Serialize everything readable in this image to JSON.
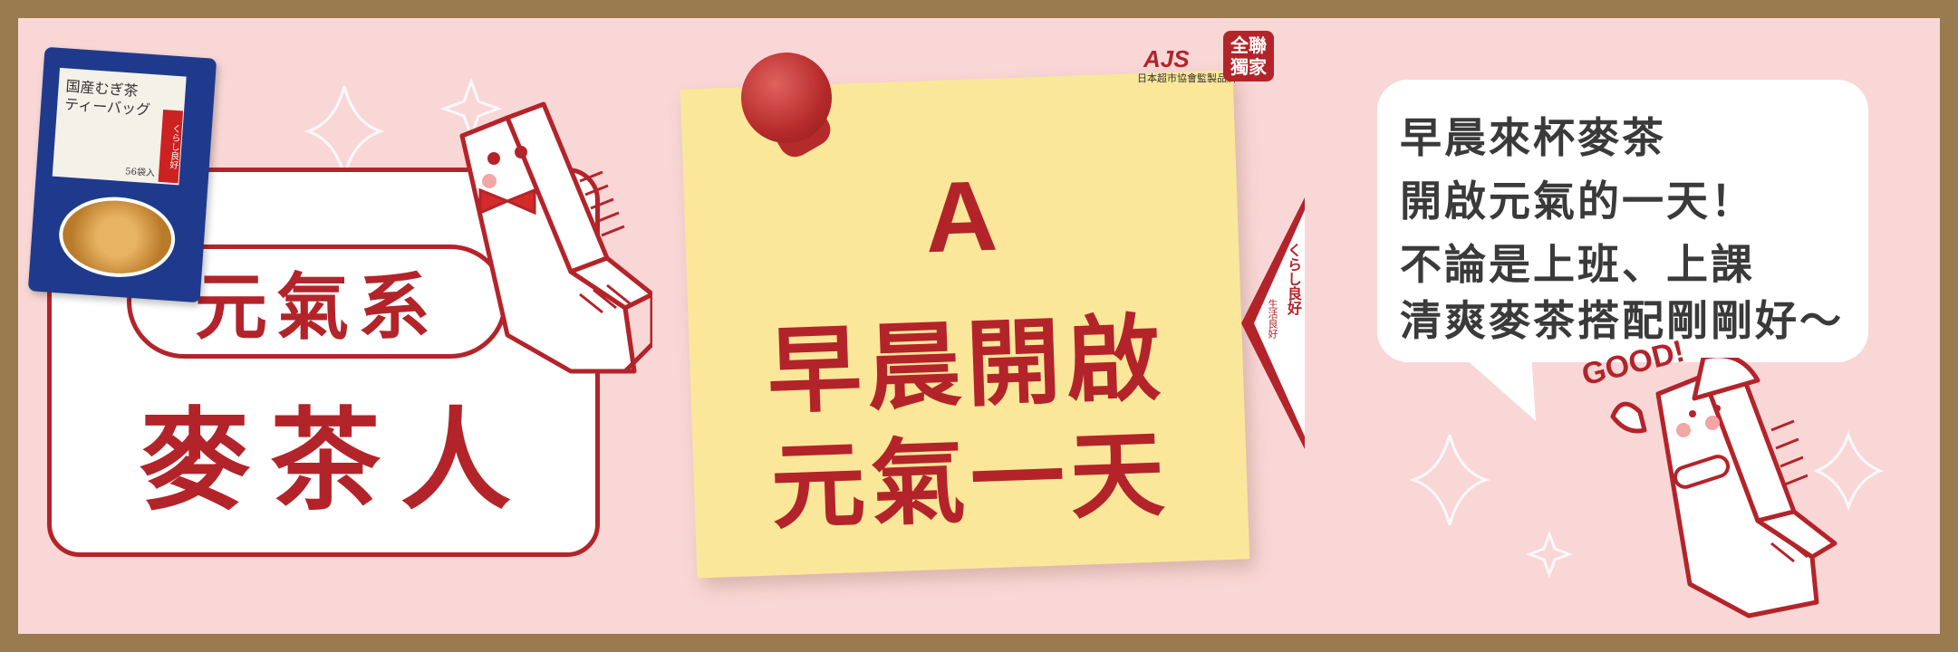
{
  "colors": {
    "frame": "#9a7a4f",
    "background": "#f9d7d6",
    "brand_red": "#b3242a",
    "note_yellow": "#fbe79a"
  },
  "brand": {
    "logo": "AJS",
    "subtitle": "日本超市協會監製品牌",
    "badge_line1": "全聯",
    "badge_line2": "獨家"
  },
  "left_panel": {
    "pill_text": "元氣系",
    "title": "麥茶人"
  },
  "product": {
    "title_line1": "国産むぎ茶",
    "title_line2": "ティーバッグ",
    "count": "56袋入",
    "band": "くらし良好"
  },
  "note": {
    "letter": "A",
    "line1": "早晨開啟",
    "line2": "元氣一天"
  },
  "side_tab": {
    "brand": "くらし良好",
    "tagline": "生活良好"
  },
  "speech_bubble": {
    "lines": [
      "早晨來杯麥茶",
      "開啟元氣的一天！",
      "不論是上班、上課",
      "清爽麥茶搭配剛剛好～"
    ]
  },
  "mascot": {
    "exclamation": "GOOD!"
  }
}
